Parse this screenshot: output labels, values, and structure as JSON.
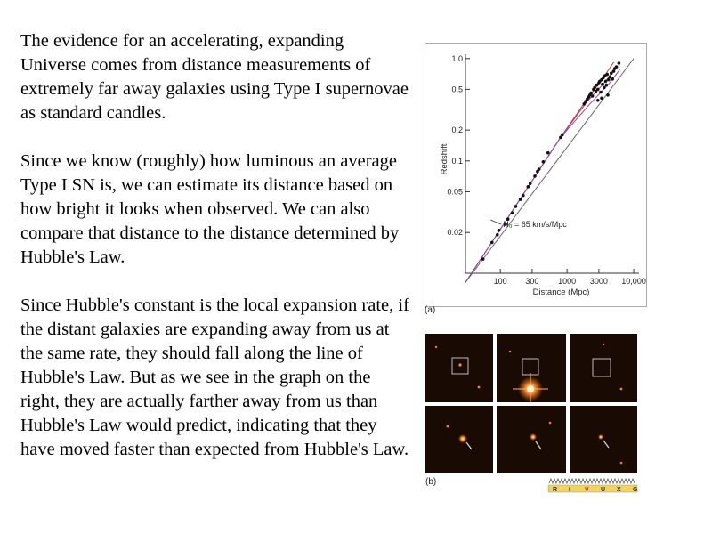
{
  "paragraphs": [
    "The evidence for an accelerating, expanding Universe comes from  distance measurements of extremely far away galaxies using Type I supernovae as standard candles.",
    "Since we know (roughly) how luminous an average Type I SN is, we can estimate its distance based on how bright it looks when observed.  We can also compare that distance to the distance determined by Hubble's Law.",
    "Since Hubble's constant is the local expansion rate, if the distant galaxies are expanding away from us at the same rate, they should fall along the line of Hubble's Law.  But as we see in the graph on the right, they are actually farther away from us than Hubble's Law would predict, indicating that they have moved faster than expected from Hubble's Law."
  ],
  "figure_a_label": "(a)",
  "figure_b_label": "(b)",
  "spectrum_letters": [
    "R",
    "I",
    "V",
    "U",
    "X",
    "G"
  ],
  "colors": {
    "hubble_line": "#666666",
    "accel_lines": [
      "#c0392b",
      "#b03a6a",
      "#8e44ad"
    ],
    "panel_bg": "#1a0a04"
  },
  "chart_data": {
    "type": "scatter",
    "xlabel": "Distance (Mpc)",
    "ylabel": "Redshift",
    "x_scale": "log",
    "y_scale": "log",
    "xlim": [
      30,
      12000
    ],
    "ylim": [
      0.008,
      1.1
    ],
    "x_ticks": [
      {
        "value": 100,
        "label": "100"
      },
      {
        "value": 300,
        "label": "300"
      },
      {
        "value": 1000,
        "label": "1000"
      },
      {
        "value": 3000,
        "label": "3000"
      },
      {
        "value": 10000,
        "label": "10,000"
      }
    ],
    "y_ticks": [
      {
        "value": 0.02,
        "label": "0.02"
      },
      {
        "value": 0.05,
        "label": "0.05"
      },
      {
        "value": 0.1,
        "label": "0.1"
      },
      {
        "value": 0.2,
        "label": "0.2"
      },
      {
        "value": 0.5,
        "label": "0.5"
      },
      {
        "value": 1.0,
        "label": "1.0"
      }
    ],
    "annotation": {
      "text": "H₀ = 65 km/s/Mpc",
      "at": [
        110,
        0.024
      ]
    },
    "hubble_line": {
      "x": [
        30,
        10000
      ],
      "y": [
        0.0065,
        1.0
      ]
    },
    "accel_curves": [
      {
        "x": [
          30,
          800,
          2000,
          3500,
          5000
        ],
        "y": [
          0.0065,
          0.17,
          0.4,
          0.65,
          0.92
        ]
      },
      {
        "x": [
          30,
          800,
          2000,
          3800,
          5600
        ],
        "y": [
          0.0065,
          0.17,
          0.38,
          0.6,
          0.85
        ]
      },
      {
        "x": [
          30,
          800,
          2200,
          4200,
          6200
        ],
        "y": [
          0.0065,
          0.17,
          0.36,
          0.56,
          0.78
        ]
      }
    ],
    "points": [
      [
        55,
        0.011
      ],
      [
        75,
        0.016
      ],
      [
        90,
        0.019
      ],
      [
        95,
        0.021
      ],
      [
        120,
        0.024
      ],
      [
        130,
        0.027
      ],
      [
        150,
        0.031
      ],
      [
        170,
        0.036
      ],
      [
        200,
        0.042
      ],
      [
        220,
        0.046
      ],
      [
        260,
        0.056
      ],
      [
        280,
        0.06
      ],
      [
        330,
        0.071
      ],
      [
        360,
        0.079
      ],
      [
        380,
        0.083
      ],
      [
        440,
        0.098
      ],
      [
        520,
        0.12
      ],
      [
        800,
        0.17
      ],
      [
        850,
        0.18
      ],
      [
        1800,
        0.36
      ],
      [
        1900,
        0.38
      ],
      [
        2000,
        0.4
      ],
      [
        2100,
        0.42
      ],
      [
        2200,
        0.44
      ],
      [
        2300,
        0.46
      ],
      [
        2400,
        0.43
      ],
      [
        2500,
        0.5
      ],
      [
        2600,
        0.52
      ],
      [
        2700,
        0.48
      ],
      [
        2800,
        0.55
      ],
      [
        2900,
        0.5
      ],
      [
        3000,
        0.58
      ],
      [
        3100,
        0.6
      ],
      [
        3200,
        0.47
      ],
      [
        3300,
        0.62
      ],
      [
        3400,
        0.56
      ],
      [
        3500,
        0.65
      ],
      [
        3600,
        0.52
      ],
      [
        3700,
        0.68
      ],
      [
        3800,
        0.6
      ],
      [
        3900,
        0.55
      ],
      [
        4000,
        0.7
      ],
      [
        4200,
        0.62
      ],
      [
        4400,
        0.66
      ],
      [
        4600,
        0.72
      ],
      [
        4800,
        0.63
      ],
      [
        5000,
        0.75
      ],
      [
        5200,
        0.8
      ],
      [
        2900,
        0.39
      ],
      [
        3300,
        0.41
      ],
      [
        4100,
        0.44
      ],
      [
        5500,
        0.83
      ],
      [
        6000,
        0.9
      ]
    ]
  }
}
